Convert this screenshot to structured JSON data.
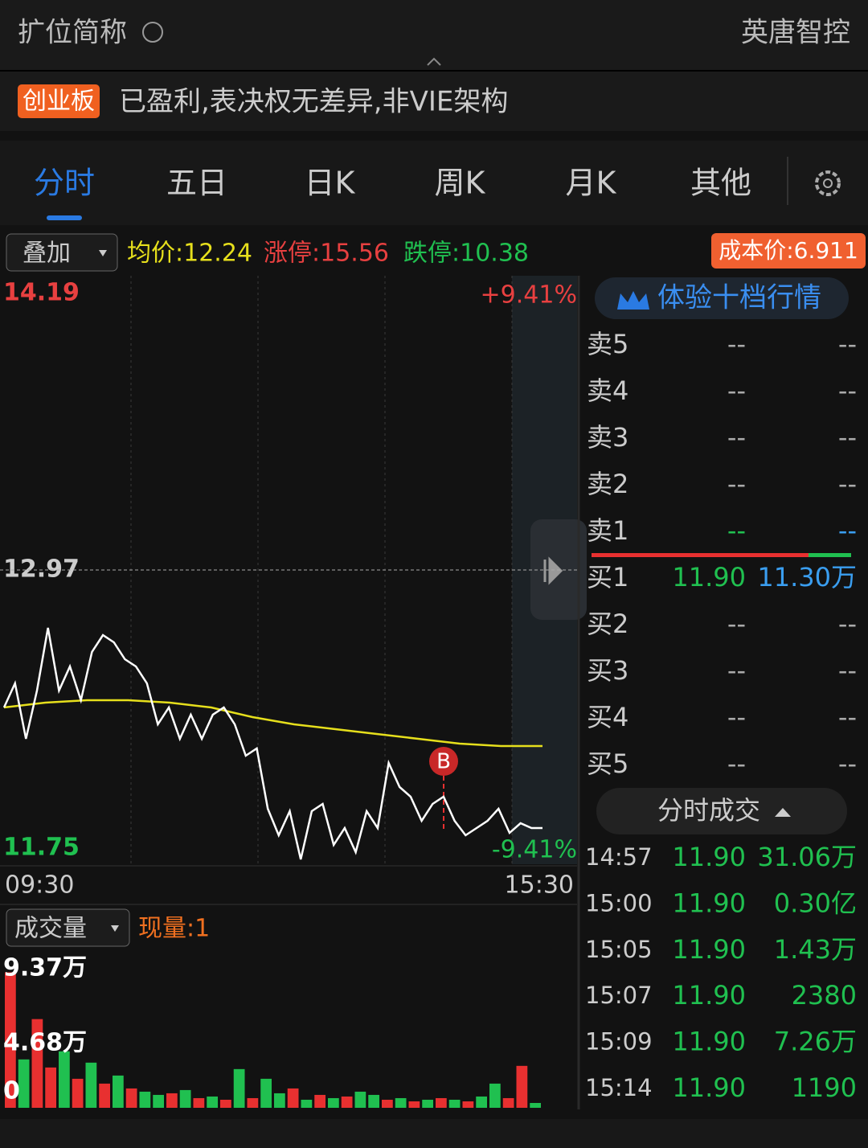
{
  "header": {
    "title": "扩位简称",
    "stock_name": "英唐智控"
  },
  "tag": {
    "board": "创业板",
    "description": "已盈利,表决权无差异,非VIE架构"
  },
  "tabs": {
    "items": [
      "分时",
      "五日",
      "日K",
      "周K",
      "月K",
      "其他"
    ],
    "active": 0
  },
  "toolbar": {
    "overlay": "叠加",
    "avg_price": "均价:12.24",
    "limit_up": "涨停:15.56",
    "limit_down": "跌停:10.38",
    "cost": "成本价:6.911"
  },
  "price_chart": {
    "ylim": [
      11.75,
      14.19
    ],
    "yticks": [
      11.75,
      12.97,
      14.19
    ],
    "pct_top": "+9.41%",
    "pct_bottom": "-9.41%",
    "x_labels": [
      "09:30",
      "15:30"
    ],
    "marker": "B",
    "price_color": "#ffffff",
    "avg_color": "#e6df1c",
    "price": [
      12.4,
      12.5,
      12.27,
      12.47,
      12.73,
      12.47,
      12.57,
      12.43,
      12.63,
      12.7,
      12.67,
      12.6,
      12.57,
      12.5,
      12.33,
      12.4,
      12.27,
      12.37,
      12.27,
      12.37,
      12.4,
      12.33,
      12.2,
      12.23,
      11.98,
      11.87,
      11.97,
      11.77,
      11.97,
      12.0,
      11.83,
      11.9,
      11.8,
      11.97,
      11.9,
      12.17,
      12.07,
      12.03,
      11.93,
      12.0,
      12.03,
      11.93,
      11.87,
      11.9,
      11.93,
      11.98,
      11.88,
      11.92,
      11.9,
      11.9
    ],
    "avg": [
      12.4,
      12.42,
      12.43,
      12.43,
      12.42,
      12.4,
      12.36,
      12.33,
      12.31,
      12.29,
      12.27,
      12.25,
      12.24,
      12.24
    ]
  },
  "volume_chart": {
    "selector": "成交量",
    "current": "现量:1",
    "ylim": [
      0,
      9.37
    ],
    "yticks": [
      0,
      {
        "value": 4.68,
        "label": "4.68万"
      },
      {
        "value": 9.37,
        "label": "9.37万"
      }
    ],
    "values": [
      8.4,
      3.0,
      5.5,
      2.5,
      3.5,
      1.8,
      2.8,
      1.5,
      2.0,
      1.2,
      1.0,
      0.8,
      0.9,
      1.1,
      0.6,
      0.7,
      0.5,
      2.4,
      0.6,
      1.8,
      0.9,
      1.2,
      0.5,
      0.8,
      0.6,
      0.7,
      1.0,
      0.8,
      0.5,
      0.6,
      0.4,
      0.5,
      0.6,
      0.5,
      0.4,
      0.7,
      1.5,
      0.6,
      2.6,
      0.3
    ],
    "colors": [
      "#e83030",
      "#20c050",
      "#e83030",
      "#e83030",
      "#20c050",
      "#e83030",
      "#20c050",
      "#e83030",
      "#20c050",
      "#e83030",
      "#20c050",
      "#20c050",
      "#e83030",
      "#20c050",
      "#e83030",
      "#20c050",
      "#e83030",
      "#20c050",
      "#e83030",
      "#20c050",
      "#20c050",
      "#e83030",
      "#20c050",
      "#e83030",
      "#20c050",
      "#e83030",
      "#20c050",
      "#20c050",
      "#e83030",
      "#20c050",
      "#e83030",
      "#20c050",
      "#e83030",
      "#20c050",
      "#e83030",
      "#20c050",
      "#20c050",
      "#e83030",
      "#e83030",
      "#20c050"
    ]
  },
  "order_book": {
    "banner": "体验十档行情",
    "asks": [
      {
        "label": "卖5",
        "price": "--",
        "volume": "--"
      },
      {
        "label": "卖4",
        "price": "--",
        "volume": "--"
      },
      {
        "label": "卖3",
        "price": "--",
        "volume": "--"
      },
      {
        "label": "卖2",
        "price": "--",
        "volume": "--"
      },
      {
        "label": "卖1",
        "price": "--",
        "volume": "--"
      }
    ],
    "bids": [
      {
        "label": "买1",
        "price": "11.90",
        "volume": "11.30万"
      },
      {
        "label": "买2",
        "price": "--",
        "volume": "--"
      },
      {
        "label": "买3",
        "price": "--",
        "volume": "--"
      },
      {
        "label": "买4",
        "price": "--",
        "volume": "--"
      },
      {
        "label": "买5",
        "price": "--",
        "volume": "--"
      }
    ]
  },
  "trades": {
    "title": "分时成交",
    "rows": [
      [
        "14:57",
        "11.90",
        "31.06万"
      ],
      [
        "15:00",
        "11.90",
        "0.30亿"
      ],
      [
        "15:05",
        "11.90",
        "1.43万"
      ],
      [
        "15:07",
        "11.90",
        "2380"
      ],
      [
        "15:09",
        "11.90",
        "7.26万"
      ],
      [
        "15:14",
        "11.90",
        "1190"
      ]
    ]
  }
}
